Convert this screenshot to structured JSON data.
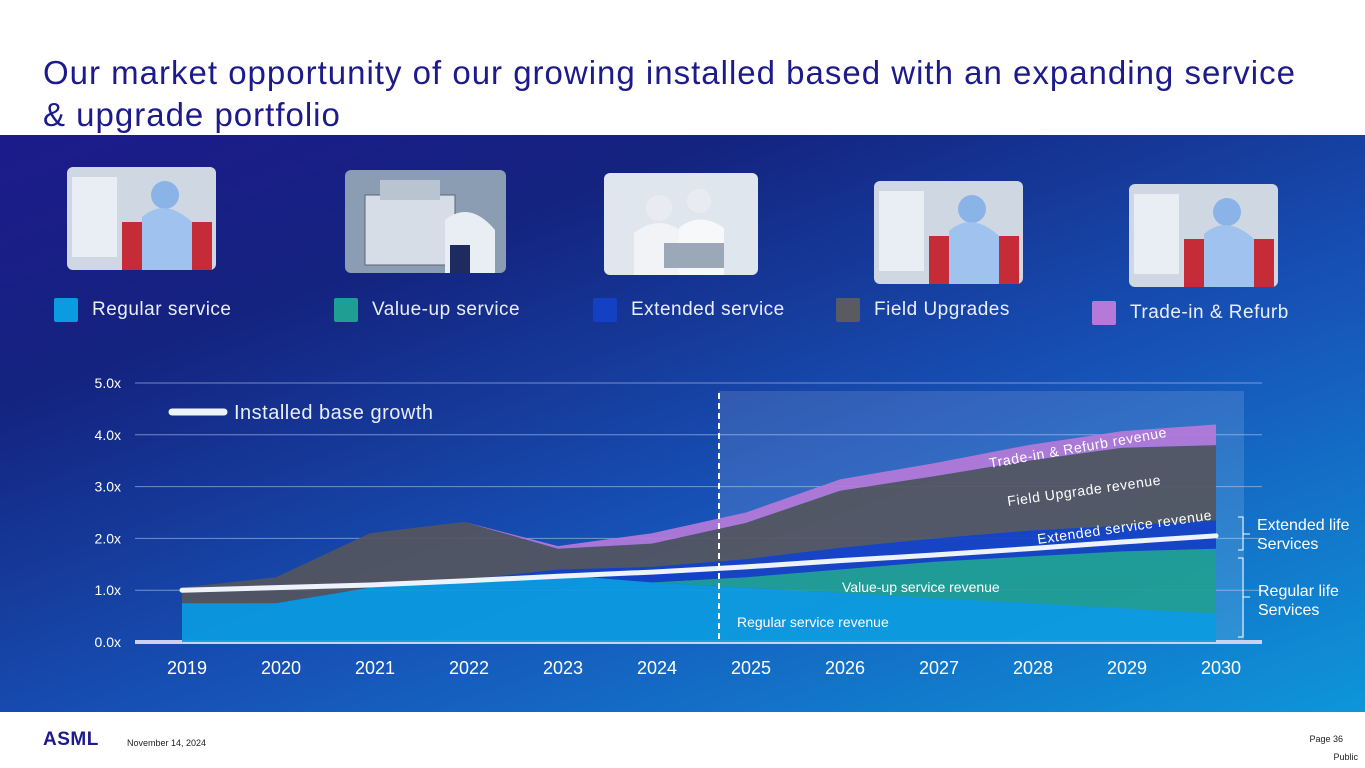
{
  "title": "Our market opportunity of our growing installed based with an expanding service & upgrade portfolio",
  "legend": [
    {
      "label": "Regular service",
      "color": "#0b9be0"
    },
    {
      "label": "Value-up service",
      "color": "#1f9e94"
    },
    {
      "label": "Extended service",
      "color": "#1440c4"
    },
    {
      "label": "Field Upgrades",
      "color": "#5a5a62"
    },
    {
      "label": "Trade-in & Refurb",
      "color": "#b57ad9"
    }
  ],
  "photos": [
    {
      "icon": "technician-photo-icon"
    },
    {
      "icon": "machine-photo-icon"
    },
    {
      "icon": "engineers-photo-icon"
    },
    {
      "icon": "technician-photo-icon"
    },
    {
      "icon": "technician-photo-icon"
    }
  ],
  "chart_data": {
    "type": "area",
    "categories": [
      "2019",
      "2020",
      "2021",
      "2022",
      "2023",
      "2024",
      "2025",
      "2026",
      "2027",
      "2028",
      "2029",
      "2030"
    ],
    "yticks": [
      "0.0x",
      "1.0x",
      "2.0x",
      "3.0x",
      "4.0x",
      "5.0x"
    ],
    "ylim": [
      0,
      5
    ],
    "forecast_start": "2025",
    "series": [
      {
        "name": "Regular service revenue",
        "color": "#0b9be0",
        "values": [
          0.75,
          0.75,
          1.05,
          1.15,
          1.3,
          1.15,
          1.05,
          0.95,
          0.85,
          0.75,
          0.65,
          0.55
        ]
      },
      {
        "name": "Value-up service revenue",
        "color": "#1f9e94",
        "values": [
          0,
          0,
          0,
          0,
          0,
          0,
          0.2,
          0.45,
          0.7,
          0.9,
          1.1,
          1.25
        ]
      },
      {
        "name": "Extended service revenue",
        "color": "#1440c4",
        "values": [
          0,
          0,
          0,
          0.05,
          0.1,
          0.3,
          0.35,
          0.42,
          0.45,
          0.5,
          0.5,
          0.55
        ]
      },
      {
        "name": "Field Upgrade revenue",
        "color": "#55565e",
        "values": [
          0.3,
          0.5,
          1.05,
          1.12,
          0.4,
          0.45,
          0.7,
          1.1,
          1.2,
          1.35,
          1.5,
          1.45
        ]
      },
      {
        "name": "Trade-in & Refurb revenue",
        "color": "#b57ad9",
        "values": [
          0,
          0,
          0,
          0,
          0.05,
          0.2,
          0.2,
          0.22,
          0.25,
          0.3,
          0.32,
          0.4
        ]
      }
    ],
    "installed_base": {
      "name": "Installed base growth",
      "values": [
        1.0,
        1.05,
        1.1,
        1.18,
        1.27,
        1.35,
        1.45,
        1.57,
        1.68,
        1.8,
        1.93,
        2.05
      ]
    },
    "annotations": [
      "Regular service revenue",
      "Value-up service revenue",
      "Extended service revenue",
      "Field Upgrade revenue",
      "Trade-in & Refurb revenue"
    ],
    "brackets": [
      {
        "label": "Extended life Services"
      },
      {
        "label": "Regular life Services"
      }
    ]
  },
  "footer": {
    "logo": "ASML",
    "date": "November 14, 2024",
    "page": "Page 36",
    "classification": "Public"
  }
}
